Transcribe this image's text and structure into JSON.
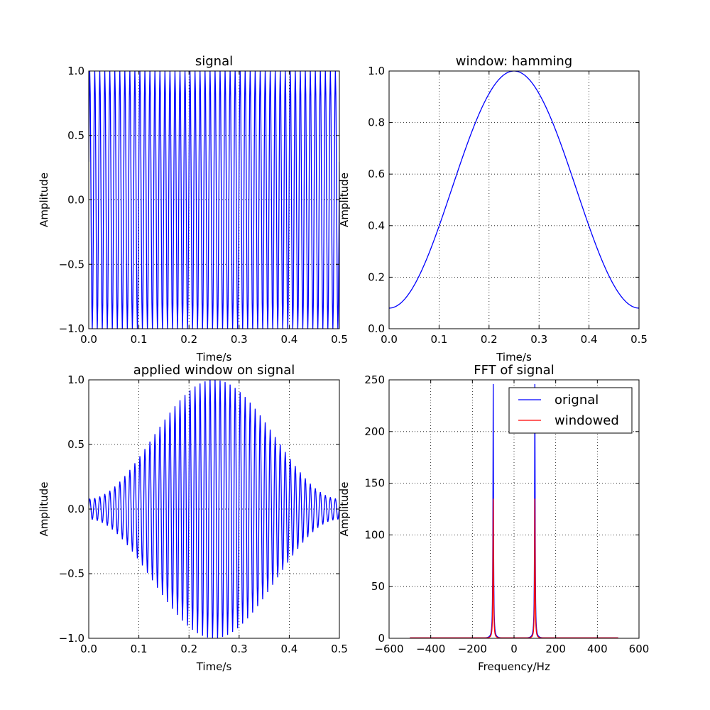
{
  "chart_data": [
    {
      "id": "signal",
      "type": "line",
      "title": "signal",
      "xlabel": "Time/s",
      "ylabel": "Amplitude",
      "xlim": [
        0.0,
        0.5
      ],
      "ylim": [
        -1.0,
        1.0
      ],
      "xticks": [
        "0.0",
        "0.1",
        "0.2",
        "0.3",
        "0.4",
        "0.5"
      ],
      "yticks": [
        "−1.0",
        "−0.5",
        "0.0",
        "0.5",
        "1.0"
      ],
      "grid": true,
      "series": [
        {
          "color": "#0000ff",
          "function": "sinusoid",
          "frequency_hz": 100,
          "amplitude": 1.0,
          "envelope": "constant",
          "sample_rate_hz": 1000,
          "x_start": 0.0,
          "x_end": 0.5
        }
      ]
    },
    {
      "id": "window",
      "type": "line",
      "title": "window: hamming",
      "xlabel": "Time/s",
      "ylabel": "Amplitude",
      "xlim": [
        0.0,
        0.5
      ],
      "ylim": [
        0.0,
        1.0
      ],
      "xticks": [
        "0.0",
        "0.1",
        "0.2",
        "0.3",
        "0.4",
        "0.5"
      ],
      "yticks": [
        "0.0",
        "0.2",
        "0.4",
        "0.6",
        "0.8",
        "1.0"
      ],
      "grid": true,
      "series": [
        {
          "color": "#0000ff",
          "function": "hamming",
          "peak": 1.0,
          "edge_value": 0.08,
          "x_start": 0.0,
          "x_end": 0.5
        }
      ]
    },
    {
      "id": "windowed",
      "type": "line",
      "title": "applied window on signal",
      "xlabel": "Time/s",
      "ylabel": "Amplitude",
      "xlim": [
        0.0,
        0.5
      ],
      "ylim": [
        -1.0,
        1.0
      ],
      "xticks": [
        "0.0",
        "0.1",
        "0.2",
        "0.3",
        "0.4",
        "0.5"
      ],
      "yticks": [
        "−1.0",
        "−0.5",
        "0.0",
        "0.5",
        "1.0"
      ],
      "grid": true,
      "series": [
        {
          "color": "#0000ff",
          "function": "sinusoid",
          "frequency_hz": 100,
          "amplitude": 1.0,
          "envelope": "hamming",
          "sample_rate_hz": 1000,
          "x_start": 0.0,
          "x_end": 0.5
        }
      ]
    },
    {
      "id": "fft",
      "type": "line",
      "title": "FFT of signal",
      "xlabel": "Frequency/Hz",
      "ylabel": "Amplitude",
      "xlim": [
        -600,
        600
      ],
      "ylim": [
        0,
        250
      ],
      "xticks": [
        "−600",
        "−400",
        "−200",
        "0",
        "200",
        "400",
        "600"
      ],
      "yticks": [
        "0",
        "50",
        "100",
        "150",
        "200",
        "250"
      ],
      "grid": true,
      "legend": "top-right",
      "series": [
        {
          "name": "orignal",
          "color": "#0000ff",
          "function": "spectrum",
          "peaks": [
            {
              "x": -100,
              "y": 246
            },
            {
              "x": 100,
              "y": 246
            }
          ],
          "x_start": -500,
          "x_end": 500
        },
        {
          "name": "windowed",
          "color": "#ff0000",
          "function": "spectrum",
          "peaks": [
            {
              "x": -100,
              "y": 135
            },
            {
              "x": 100,
              "y": 135
            }
          ],
          "x_start": -500,
          "x_end": 500
        }
      ]
    }
  ]
}
